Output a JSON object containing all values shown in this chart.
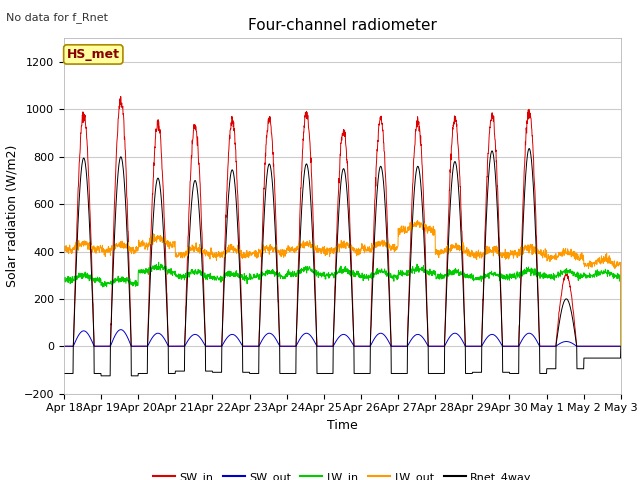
{
  "title": "Four-channel radiometer",
  "top_left_note": "No data for f_Rnet",
  "ylabel": "Solar radiation (W/m2)",
  "xlabel": "Time",
  "annotation_box": "HS_met",
  "ylim": [
    -200,
    1300
  ],
  "fig_bg_color": "#ffffff",
  "plot_bg_color": "#ffffff",
  "legend": [
    "SW_in",
    "SW_out",
    "LW_in",
    "LW_out",
    "Rnet_4way"
  ],
  "legend_colors": [
    "#dd0000",
    "#0000cc",
    "#00cc00",
    "#ff9900",
    "#000000"
  ],
  "x_tick_labels": [
    "Apr 18",
    "Apr 19",
    "Apr 20",
    "Apr 21",
    "Apr 22",
    "Apr 23",
    "Apr 24",
    "Apr 25",
    "Apr 26",
    "Apr 27",
    "Apr 28",
    "Apr 29",
    "Apr 30",
    "May 1",
    "May 2",
    "May 3"
  ],
  "yticks": [
    -200,
    0,
    200,
    400,
    600,
    800,
    1000,
    1200
  ],
  "SW_in_peaks": [
    980,
    1040,
    940,
    930,
    950,
    960,
    985,
    910,
    960,
    950,
    960,
    970,
    990,
    300,
    0
  ],
  "SW_out_peaks": [
    65,
    70,
    55,
    50,
    50,
    55,
    55,
    50,
    55,
    50,
    55,
    50,
    55,
    20,
    0
  ],
  "LW_in_base": [
    280,
    265,
    315,
    295,
    288,
    295,
    305,
    300,
    295,
    308,
    295,
    288,
    298,
    295,
    295
  ],
  "LW_out_base": [
    410,
    405,
    430,
    390,
    385,
    392,
    408,
    402,
    412,
    490,
    398,
    385,
    392,
    375,
    345
  ],
  "Rnet_peaks": [
    795,
    800,
    710,
    700,
    745,
    770,
    770,
    750,
    760,
    760,
    780,
    825,
    835,
    200,
    0
  ],
  "Rnet_night": [
    -115,
    -125,
    -115,
    -105,
    -110,
    -115,
    -115,
    -115,
    -115,
    -115,
    -115,
    -110,
    -115,
    -95,
    -50
  ]
}
